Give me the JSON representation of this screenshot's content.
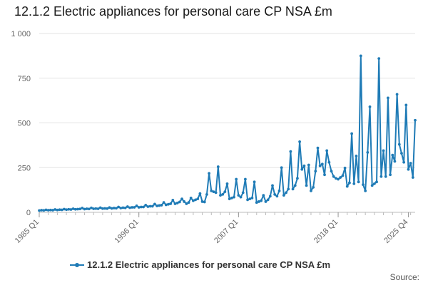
{
  "chart_data": {
    "type": "line",
    "title": "12.1.2 Electric appliances for personal care CP NSA £m",
    "xlabel": "",
    "ylabel": "",
    "ylim": [
      0,
      1000
    ],
    "y_ticks": [
      0,
      250,
      500,
      750,
      1000
    ],
    "y_tick_labels": [
      "0",
      "250",
      "500",
      "750",
      "1 000"
    ],
    "x_tick_labels": [
      {
        "label": "1985 Q1",
        "index": 0
      },
      {
        "label": "1996 Q1",
        "index": 44
      },
      {
        "label": "2007 Q1",
        "index": 88
      },
      {
        "label": "2018 Q1",
        "index": 132
      },
      {
        "label": "2025 Q4",
        "index": 163
      }
    ],
    "series": [
      {
        "name": "12.1.2 Electric appliances for personal care CP NSA £m",
        "color": "#1f7bb6",
        "start": "1985 Q1",
        "values": [
          10,
          12,
          11,
          14,
          12,
          13,
          12,
          16,
          13,
          15,
          14,
          18,
          15,
          17,
          16,
          20,
          17,
          18,
          19,
          24,
          18,
          20,
          19,
          25,
          20,
          21,
          20,
          26,
          21,
          22,
          21,
          27,
          22,
          24,
          23,
          30,
          24,
          26,
          25,
          32,
          26,
          28,
          28,
          36,
          28,
          30,
          30,
          40,
          32,
          34,
          34,
          46,
          36,
          38,
          40,
          55,
          42,
          45,
          48,
          68,
          48,
          52,
          58,
          75,
          60,
          48,
          55,
          80,
          65,
          70,
          75,
          105,
          60,
          58,
          100,
          218,
          120,
          115,
          110,
          255,
          95,
          100,
          115,
          160,
          75,
          80,
          85,
          185,
          95,
          85,
          110,
          185,
          70,
          75,
          80,
          170,
          55,
          60,
          65,
          95,
          60,
          70,
          90,
          150,
          100,
          90,
          120,
          250,
          95,
          110,
          130,
          340,
          130,
          150,
          190,
          395,
          240,
          260,
          150,
          265,
          120,
          140,
          230,
          360,
          260,
          270,
          210,
          345,
          280,
          230,
          200,
          190,
          185,
          195,
          205,
          248,
          145,
          165,
          440,
          160,
          315,
          170,
          875,
          155,
          120,
          335,
          590,
          150,
          160,
          170,
          860,
          200,
          345,
          200,
          640,
          210,
          320,
          285,
          660,
          380,
          330,
          280,
          600,
          240,
          275,
          195,
          515
        ]
      }
    ]
  },
  "legend": {
    "label": "12.1.2 Electric appliances for personal care CP NSA £m"
  },
  "footer": {
    "source_label": "Source:"
  }
}
